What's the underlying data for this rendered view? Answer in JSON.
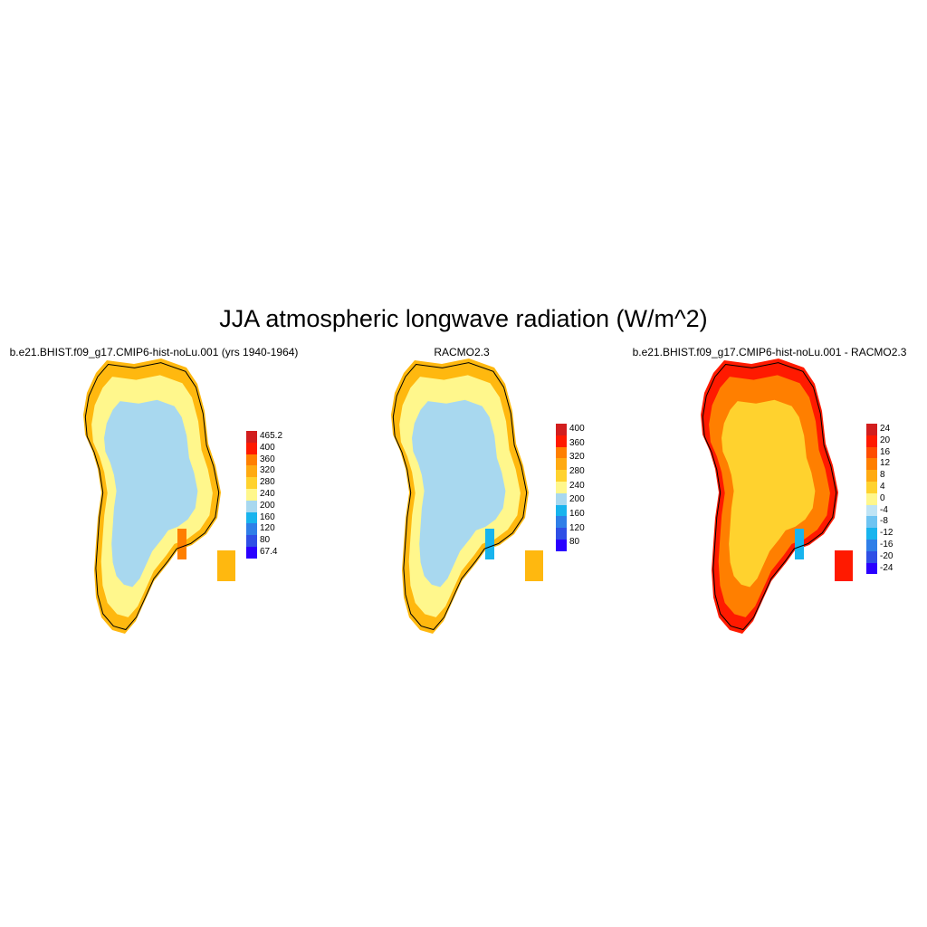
{
  "title": "JJA atmospheric longwave radiation (W/m^2)",
  "panels": [
    {
      "title": "b.e21.BHIST.f09_g17.CMIP6-hist-noLu.001 (yrs 1940-1964)",
      "colorbar": {
        "colors": [
          "#2a00ff",
          "#2f4fe6",
          "#2f7fe8",
          "#18b4ee",
          "#a8d8ef",
          "#fff78c",
          "#ffd22e",
          "#ffaa11",
          "#ff7f00",
          "#ff1a00",
          "#d21e1e"
        ],
        "labels": [
          "465.2",
          "400",
          "360",
          "320",
          "280",
          "240",
          "200",
          "160",
          "120",
          "80",
          "67.4"
        ]
      },
      "map": {
        "interior": "#a8d8ef",
        "margin": "#fff78c",
        "outer": "#ffb80f",
        "spot": "#ff7f00"
      }
    },
    {
      "title": "RACMO2.3",
      "colorbar": {
        "colors": [
          "#2a00ff",
          "#2f4fe6",
          "#2f7fe8",
          "#18b4ee",
          "#a8d8ef",
          "#fff78c",
          "#ffd22e",
          "#ffaa11",
          "#ff7f00",
          "#ff1a00",
          "#d21e1e"
        ],
        "labels": [
          "400",
          "360",
          "320",
          "280",
          "240",
          "200",
          "160",
          "120",
          "80"
        ]
      },
      "map": {
        "interior": "#a8d8ef",
        "margin": "#fff78c",
        "outer": "#ffb80f",
        "spot": "#18b4ee"
      }
    },
    {
      "title": "b.e21.BHIST.f09_g17.CMIP6-hist-noLu.001 - RACMO2.3",
      "colorbar": {
        "colors": [
          "#2a00ff",
          "#2f4fe6",
          "#2f7fe8",
          "#18b4ee",
          "#6ec4f2",
          "#bfe4f5",
          "#fff78c",
          "#ffd22e",
          "#ffaa11",
          "#ff7f00",
          "#ff4d00",
          "#ff1a00",
          "#d21e1e"
        ],
        "labels": [
          "24",
          "20",
          "16",
          "12",
          "8",
          "4",
          "0",
          "-4",
          "-8",
          "-12",
          "-16",
          "-20",
          "-24"
        ]
      },
      "map": {
        "interior": "#ffd22e",
        "margin": "#ff7f00",
        "outer": "#ff1a00",
        "spot": "#18b4ee"
      }
    }
  ]
}
